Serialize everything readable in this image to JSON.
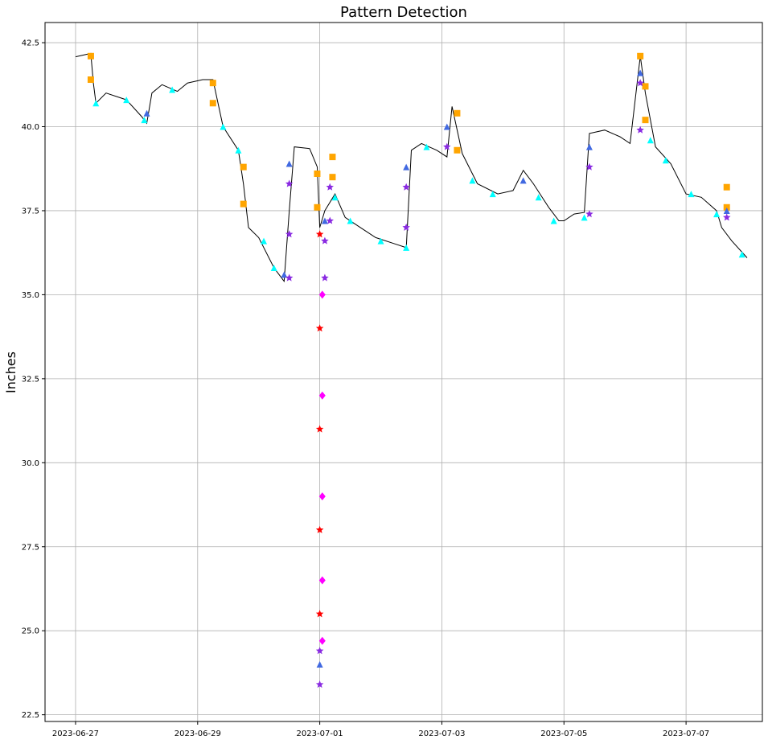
{
  "chart_data": {
    "type": "scatter",
    "title": "Pattern Detection",
    "xlabel": "",
    "ylabel": "Inches",
    "x_ticks": [
      "2023-06-27",
      "2023-06-29",
      "2023-07-01",
      "2023-07-03",
      "2023-07-05",
      "2023-07-07"
    ],
    "y_ticks": [
      "22.5",
      "25.0",
      "27.5",
      "30.0",
      "32.5",
      "35.0",
      "37.5",
      "40.0",
      "42.5"
    ],
    "xlim": [
      "2023-06-26 12:00",
      "2023-07-08 06:00"
    ],
    "ylim": [
      22.3,
      43.1
    ],
    "grid": true,
    "legend": "none",
    "series": [
      {
        "role": "line",
        "color": "#000000",
        "points": [
          [
            "2023-06-27 00:00",
            42.08
          ],
          [
            "2023-06-27 06:00",
            42.18
          ],
          [
            "2023-06-27 07:00",
            41.3
          ],
          [
            "2023-06-27 08:00",
            40.7
          ],
          [
            "2023-06-27 12:00",
            41.0
          ],
          [
            "2023-06-27 20:00",
            40.8
          ],
          [
            "2023-06-28 02:00",
            40.3
          ],
          [
            "2023-06-28 04:00",
            40.1
          ],
          [
            "2023-06-28 06:00",
            41.0
          ],
          [
            "2023-06-28 10:00",
            41.25
          ],
          [
            "2023-06-28 16:00",
            41.05
          ],
          [
            "2023-06-28 20:00",
            41.3
          ],
          [
            "2023-06-29 02:00",
            41.4
          ],
          [
            "2023-06-29 06:00",
            41.4
          ],
          [
            "2023-06-29 10:00",
            40.0
          ],
          [
            "2023-06-29 16:00",
            39.3
          ],
          [
            "2023-06-29 18:00",
            38.3
          ],
          [
            "2023-06-29 20:00",
            37.0
          ],
          [
            "2023-06-30 00:00",
            36.7
          ],
          [
            "2023-06-30 06:00",
            35.8
          ],
          [
            "2023-06-30 10:00",
            35.4
          ],
          [
            "2023-06-30 12:00",
            37.5
          ],
          [
            "2023-06-30 14:00",
            39.4
          ],
          [
            "2023-06-30 20:00",
            39.35
          ],
          [
            "2023-06-30 23:00",
            38.8
          ],
          [
            "2023-07-01 00:00",
            37.0
          ],
          [
            "2023-07-01 02:00",
            37.5
          ],
          [
            "2023-07-01 06:00",
            38.0
          ],
          [
            "2023-07-01 10:00",
            37.3
          ],
          [
            "2023-07-01 16:00",
            37.0
          ],
          [
            "2023-07-01 22:00",
            36.7
          ],
          [
            "2023-07-02 06:00",
            36.5
          ],
          [
            "2023-07-02 10:00",
            36.4
          ],
          [
            "2023-07-02 12:00",
            39.3
          ],
          [
            "2023-07-02 16:00",
            39.5
          ],
          [
            "2023-07-02 22:00",
            39.3
          ],
          [
            "2023-07-03 02:00",
            39.1
          ],
          [
            "2023-07-03 04:00",
            40.6
          ],
          [
            "2023-07-03 08:00",
            39.2
          ],
          [
            "2023-07-03 14:00",
            38.3
          ],
          [
            "2023-07-03 22:00",
            38.0
          ],
          [
            "2023-07-04 04:00",
            38.1
          ],
          [
            "2023-07-04 08:00",
            38.7
          ],
          [
            "2023-07-04 12:00",
            38.3
          ],
          [
            "2023-07-04 18:00",
            37.6
          ],
          [
            "2023-07-04 22:00",
            37.2
          ],
          [
            "2023-07-05 00:00",
            37.2
          ],
          [
            "2023-07-05 04:00",
            37.4
          ],
          [
            "2023-07-05 08:00",
            37.45
          ],
          [
            "2023-07-05 10:00",
            39.8
          ],
          [
            "2023-07-05 16:00",
            39.9
          ],
          [
            "2023-07-05 22:00",
            39.7
          ],
          [
            "2023-07-06 02:00",
            39.5
          ],
          [
            "2023-07-06 06:00",
            42.1
          ],
          [
            "2023-07-06 08:00",
            41.0
          ],
          [
            "2023-07-06 12:00",
            39.4
          ],
          [
            "2023-07-06 18:00",
            38.9
          ],
          [
            "2023-07-07 00:00",
            38.0
          ],
          [
            "2023-07-07 06:00",
            37.9
          ],
          [
            "2023-07-07 12:00",
            37.5
          ],
          [
            "2023-07-07 14:00",
            37.0
          ],
          [
            "2023-07-07 18:00",
            36.6
          ],
          [
            "2023-07-08 00:00",
            36.1
          ]
        ]
      },
      {
        "color": "#00ffff",
        "marker": "triangle",
        "points": [
          [
            "2023-06-27 08:00",
            40.7
          ],
          [
            "2023-06-27 20:00",
            40.8
          ],
          [
            "2023-06-28 03:00",
            40.2
          ],
          [
            "2023-06-28 14:00",
            41.1
          ],
          [
            "2023-06-29 10:00",
            40.0
          ],
          [
            "2023-06-29 16:00",
            39.3
          ],
          [
            "2023-06-30 02:00",
            36.6
          ],
          [
            "2023-06-30 06:00",
            35.8
          ],
          [
            "2023-07-01 06:00",
            37.9
          ],
          [
            "2023-07-01 12:00",
            37.2
          ],
          [
            "2023-07-02 00:00",
            36.6
          ],
          [
            "2023-07-02 10:00",
            36.4
          ],
          [
            "2023-07-02 18:00",
            39.4
          ],
          [
            "2023-07-03 12:00",
            38.4
          ],
          [
            "2023-07-03 20:00",
            38.0
          ],
          [
            "2023-07-04 14:00",
            37.9
          ],
          [
            "2023-07-04 20:00",
            37.2
          ],
          [
            "2023-07-05 08:00",
            37.3
          ],
          [
            "2023-07-06 10:00",
            39.6
          ],
          [
            "2023-07-06 16:00",
            39.0
          ],
          [
            "2023-07-07 02:00",
            38.0
          ],
          [
            "2023-07-07 12:00",
            37.4
          ],
          [
            "2023-07-07 22:00",
            36.2
          ]
        ]
      },
      {
        "color": "#ffa500",
        "marker": "square",
        "points": [
          [
            "2023-06-27 06:00",
            42.1
          ],
          [
            "2023-06-27 06:00",
            41.4
          ],
          [
            "2023-06-29 06:00",
            41.3
          ],
          [
            "2023-06-29 06:00",
            40.7
          ],
          [
            "2023-06-29 18:00",
            38.8
          ],
          [
            "2023-06-29 18:00",
            37.7
          ],
          [
            "2023-06-30 23:00",
            38.6
          ],
          [
            "2023-06-30 23:00",
            37.6
          ],
          [
            "2023-07-01 05:00",
            39.1
          ],
          [
            "2023-07-01 05:00",
            38.5
          ],
          [
            "2023-07-03 06:00",
            40.4
          ],
          [
            "2023-07-03 06:00",
            39.3
          ],
          [
            "2023-07-06 06:00",
            42.1
          ],
          [
            "2023-07-06 08:00",
            41.2
          ],
          [
            "2023-07-06 08:00",
            40.2
          ],
          [
            "2023-07-07 16:00",
            38.2
          ],
          [
            "2023-07-07 16:00",
            37.6
          ]
        ]
      },
      {
        "color": "#4169e1",
        "marker": "triangle",
        "points": [
          [
            "2023-06-28 04:00",
            40.4
          ],
          [
            "2023-06-30 10:00",
            35.6
          ],
          [
            "2023-06-30 12:00",
            38.9
          ],
          [
            "2023-07-01 02:00",
            37.2
          ],
          [
            "2023-07-01 00:00",
            24.0
          ],
          [
            "2023-07-02 10:00",
            38.8
          ],
          [
            "2023-07-03 02:00",
            40.0
          ],
          [
            "2023-07-04 08:00",
            38.4
          ],
          [
            "2023-07-05 10:00",
            39.4
          ],
          [
            "2023-07-06 06:00",
            41.6
          ],
          [
            "2023-07-07 16:00",
            37.5
          ]
        ]
      },
      {
        "color": "#8a2be2",
        "marker": "star",
        "points": [
          [
            "2023-06-30 12:00",
            38.3
          ],
          [
            "2023-06-30 12:00",
            36.8
          ],
          [
            "2023-06-30 12:00",
            35.5
          ],
          [
            "2023-07-01 02:00",
            36.6
          ],
          [
            "2023-07-01 02:00",
            35.5
          ],
          [
            "2023-07-01 04:00",
            38.2
          ],
          [
            "2023-07-01 04:00",
            37.2
          ],
          [
            "2023-07-01 00:00",
            24.4
          ],
          [
            "2023-07-01 00:00",
            23.4
          ],
          [
            "2023-07-02 10:00",
            38.2
          ],
          [
            "2023-07-02 10:00",
            37.0
          ],
          [
            "2023-07-03 02:00",
            39.4
          ],
          [
            "2023-07-05 10:00",
            38.8
          ],
          [
            "2023-07-05 10:00",
            37.4
          ],
          [
            "2023-07-06 06:00",
            41.3
          ],
          [
            "2023-07-06 06:00",
            39.9
          ],
          [
            "2023-07-07 16:00",
            37.3
          ]
        ]
      },
      {
        "color": "#ff0000",
        "marker": "star",
        "points": [
          [
            "2023-07-01 00:00",
            36.8
          ],
          [
            "2023-07-01 00:00",
            34.0
          ],
          [
            "2023-07-01 00:00",
            31.0
          ],
          [
            "2023-07-01 00:00",
            28.0
          ],
          [
            "2023-07-01 00:00",
            25.5
          ]
        ]
      },
      {
        "color": "#ff00ff",
        "marker": "diamond",
        "points": [
          [
            "2023-07-01 01:00",
            35.0
          ],
          [
            "2023-07-01 01:00",
            32.0
          ],
          [
            "2023-07-01 01:00",
            29.0
          ],
          [
            "2023-07-01 01:00",
            26.5
          ],
          [
            "2023-07-01 01:00",
            24.7
          ]
        ]
      }
    ]
  }
}
